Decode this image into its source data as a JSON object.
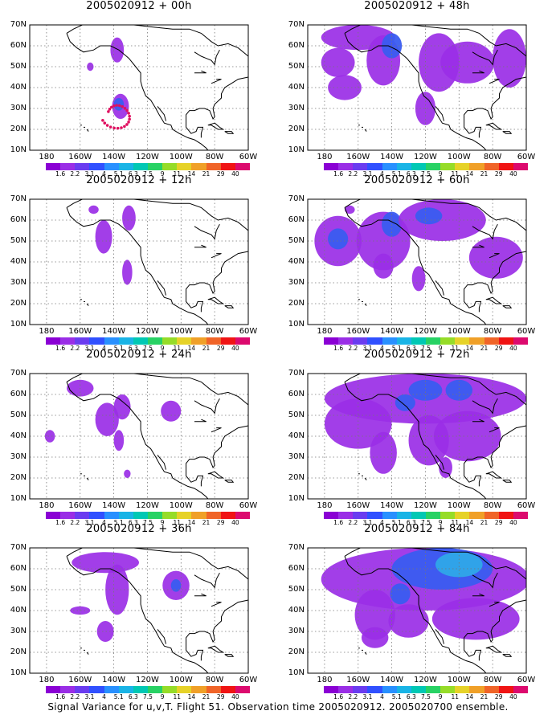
{
  "panels": [
    {
      "title": "2005020912 + 00h",
      "fields": [
        {
          "lon": -138,
          "lat": 58,
          "rx": 4,
          "ry": 6,
          "lvl": 1
        },
        {
          "lon": -154,
          "lat": 50,
          "rx": 2,
          "ry": 2,
          "lvl": 1
        },
        {
          "lon": -136,
          "lat": 31,
          "rx": 5,
          "ry": 6,
          "lvl": 1
        },
        {
          "lon": -137,
          "lat": 32,
          "rx": 3,
          "ry": 3,
          "lvl": 2
        }
      ],
      "obs": true
    },
    {
      "title": "2005020912 + 48h",
      "fields": [
        {
          "lon": -160,
          "lat": 64,
          "rx": 22,
          "ry": 6,
          "lvl": 1
        },
        {
          "lon": -145,
          "lat": 53,
          "rx": 10,
          "ry": 12,
          "lvl": 1
        },
        {
          "lon": -140,
          "lat": 60,
          "rx": 6,
          "ry": 6,
          "lvl": 2
        },
        {
          "lon": -172,
          "lat": 52,
          "rx": 10,
          "ry": 7,
          "lvl": 1
        },
        {
          "lon": -168,
          "lat": 40,
          "rx": 10,
          "ry": 6,
          "lvl": 1
        },
        {
          "lon": -112,
          "lat": 52,
          "rx": 12,
          "ry": 14,
          "lvl": 1
        },
        {
          "lon": -95,
          "lat": 52,
          "rx": 16,
          "ry": 10,
          "lvl": 1
        },
        {
          "lon": -120,
          "lat": 30,
          "rx": 6,
          "ry": 8,
          "lvl": 1
        },
        {
          "lon": -70,
          "lat": 54,
          "rx": 10,
          "ry": 14,
          "lvl": 1
        }
      ],
      "obs": false
    },
    {
      "title": "2005020912 + 12h",
      "fields": [
        {
          "lon": -152,
          "lat": 65,
          "rx": 3,
          "ry": 2,
          "lvl": 1
        },
        {
          "lon": -146,
          "lat": 52,
          "rx": 5,
          "ry": 8,
          "lvl": 1
        },
        {
          "lon": -131,
          "lat": 61,
          "rx": 4,
          "ry": 6,
          "lvl": 1
        },
        {
          "lon": -132,
          "lat": 35,
          "rx": 3,
          "ry": 6,
          "lvl": 1
        }
      ],
      "obs": false
    },
    {
      "title": "2005020912 + 60h",
      "fields": [
        {
          "lon": -165,
          "lat": 65,
          "rx": 3,
          "ry": 2,
          "lvl": 1
        },
        {
          "lon": -172,
          "lat": 50,
          "rx": 14,
          "ry": 12,
          "lvl": 1
        },
        {
          "lon": -172,
          "lat": 51,
          "rx": 6,
          "ry": 5,
          "lvl": 2
        },
        {
          "lon": -145,
          "lat": 50,
          "rx": 16,
          "ry": 14,
          "lvl": 1
        },
        {
          "lon": -140,
          "lat": 58,
          "rx": 6,
          "ry": 6,
          "lvl": 2
        },
        {
          "lon": -110,
          "lat": 60,
          "rx": 26,
          "ry": 10,
          "lvl": 1
        },
        {
          "lon": -118,
          "lat": 62,
          "rx": 8,
          "ry": 4,
          "lvl": 2
        },
        {
          "lon": -78,
          "lat": 42,
          "rx": 16,
          "ry": 10,
          "lvl": 1
        },
        {
          "lon": -124,
          "lat": 32,
          "rx": 4,
          "ry": 6,
          "lvl": 1
        },
        {
          "lon": -145,
          "lat": 38,
          "rx": 6,
          "ry": 6,
          "lvl": 1
        }
      ],
      "obs": false
    },
    {
      "title": "2005020912 + 24h",
      "fields": [
        {
          "lon": -160,
          "lat": 63,
          "rx": 8,
          "ry": 4,
          "lvl": 1
        },
        {
          "lon": -144,
          "lat": 48,
          "rx": 7,
          "ry": 8,
          "lvl": 1
        },
        {
          "lon": -135,
          "lat": 54,
          "rx": 5,
          "ry": 6,
          "lvl": 1
        },
        {
          "lon": -137,
          "lat": 38,
          "rx": 3,
          "ry": 5,
          "lvl": 1
        },
        {
          "lon": -132,
          "lat": 22,
          "rx": 2,
          "ry": 2,
          "lvl": 1
        },
        {
          "lon": -106,
          "lat": 52,
          "rx": 6,
          "ry": 5,
          "lvl": 1
        },
        {
          "lon": -178,
          "lat": 40,
          "rx": 3,
          "ry": 3,
          "lvl": 1
        }
      ],
      "obs": false
    },
    {
      "title": "2005020912 + 72h",
      "fields": [
        {
          "lon": -120,
          "lat": 58,
          "rx": 60,
          "ry": 12,
          "lvl": 1
        },
        {
          "lon": -160,
          "lat": 46,
          "rx": 20,
          "ry": 12,
          "lvl": 1
        },
        {
          "lon": -145,
          "lat": 32,
          "rx": 8,
          "ry": 10,
          "lvl": 1
        },
        {
          "lon": -118,
          "lat": 38,
          "rx": 12,
          "ry": 12,
          "lvl": 1
        },
        {
          "lon": -95,
          "lat": 40,
          "rx": 20,
          "ry": 12,
          "lvl": 1
        },
        {
          "lon": -120,
          "lat": 62,
          "rx": 10,
          "ry": 5,
          "lvl": 2
        },
        {
          "lon": -100,
          "lat": 62,
          "rx": 8,
          "ry": 5,
          "lvl": 2
        },
        {
          "lon": -132,
          "lat": 56,
          "rx": 6,
          "ry": 4,
          "lvl": 2
        },
        {
          "lon": -108,
          "lat": 25,
          "rx": 4,
          "ry": 5,
          "lvl": 1
        }
      ],
      "obs": false
    },
    {
      "title": "2005020912 + 36h",
      "fields": [
        {
          "lon": -145,
          "lat": 63,
          "rx": 20,
          "ry": 5,
          "lvl": 1
        },
        {
          "lon": -138,
          "lat": 50,
          "rx": 7,
          "ry": 12,
          "lvl": 1
        },
        {
          "lon": -160,
          "lat": 40,
          "rx": 6,
          "ry": 2,
          "lvl": 1
        },
        {
          "lon": -145,
          "lat": 30,
          "rx": 5,
          "ry": 5,
          "lvl": 1
        },
        {
          "lon": -103,
          "lat": 52,
          "rx": 8,
          "ry": 7,
          "lvl": 1
        },
        {
          "lon": -103,
          "lat": 52,
          "rx": 3,
          "ry": 3,
          "lvl": 2
        }
      ],
      "obs": false
    },
    {
      "title": "2005020912 + 84h",
      "fields": [
        {
          "lon": -120,
          "lat": 55,
          "rx": 62,
          "ry": 15,
          "lvl": 1
        },
        {
          "lon": -110,
          "lat": 60,
          "rx": 30,
          "ry": 10,
          "lvl": 2
        },
        {
          "lon": -100,
          "lat": 62,
          "rx": 14,
          "ry": 6,
          "lvl": 3
        },
        {
          "lon": -150,
          "lat": 38,
          "rx": 12,
          "ry": 12,
          "lvl": 1
        },
        {
          "lon": -130,
          "lat": 35,
          "rx": 12,
          "ry": 8,
          "lvl": 1
        },
        {
          "lon": -90,
          "lat": 36,
          "rx": 26,
          "ry": 10,
          "lvl": 1
        },
        {
          "lon": -135,
          "lat": 48,
          "rx": 6,
          "ry": 5,
          "lvl": 2
        },
        {
          "lon": -150,
          "lat": 27,
          "rx": 8,
          "ry": 5,
          "lvl": 1
        }
      ],
      "obs": false
    }
  ],
  "map_extent": {
    "lon_min": -190,
    "lon_max": -60,
    "lat_min": 10,
    "lat_max": 70
  },
  "lat_labels": [
    "70N",
    "60N",
    "50N",
    "40N",
    "30N",
    "20N",
    "10N"
  ],
  "lon_labels": [
    "180",
    "160W",
    "140W",
    "120W",
    "100W",
    "80W",
    "60W"
  ],
  "colorbar": {
    "labels": [
      "1.6",
      "2.2",
      "3.1",
      "4",
      "5.1",
      "6.3",
      "7.5",
      "9",
      "11",
      "14",
      "21",
      "29",
      "40"
    ],
    "colors": [
      "#8a00d4",
      "#9a2ee6",
      "#6a3cf0",
      "#3050ff",
      "#2890ff",
      "#19b4e6",
      "#00c8b4",
      "#28d264",
      "#96dc28",
      "#e6d228",
      "#f0a028",
      "#f06428",
      "#f01414",
      "#dc0a6e"
    ]
  },
  "level_colors": {
    "1": "#9a2ee6",
    "2": "#3a5cf0",
    "3": "#2fa8e8"
  },
  "footer": "Signal Variance for u,v,T. Flight 51. Observation time 2005020912. 2005020700 ensemble."
}
